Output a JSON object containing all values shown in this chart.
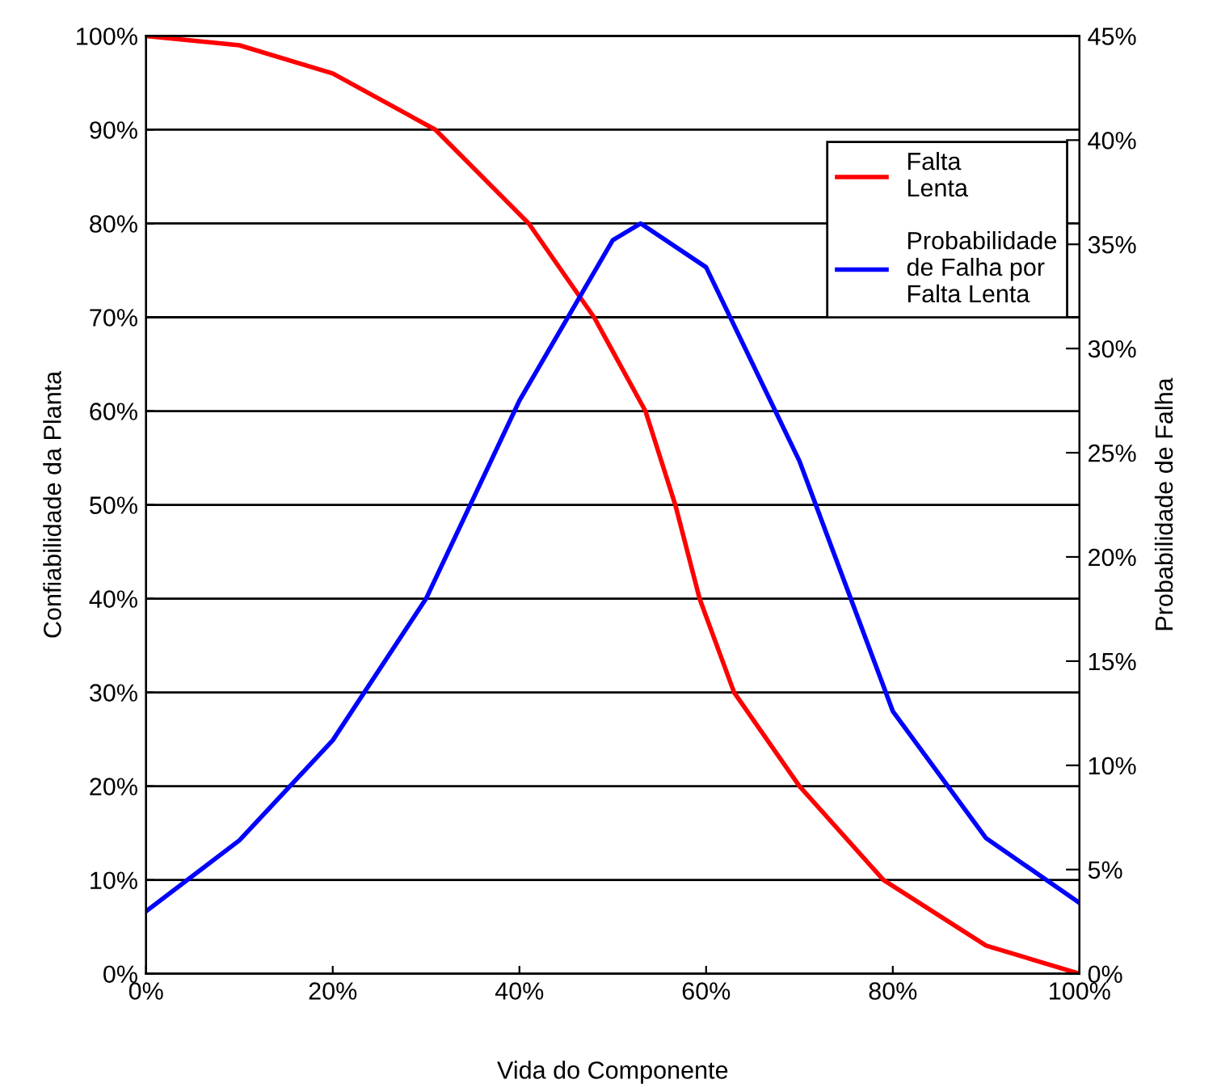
{
  "chart_data": {
    "type": "line",
    "xlabel": "Vida do Componente",
    "ylabel": "Confiabilidade da Planta",
    "y2label": "Probabilidade de Falha",
    "xlim": [
      0,
      100
    ],
    "ylim": [
      0,
      100
    ],
    "y2lim": [
      0,
      45
    ],
    "xticks": [
      {
        "value": 0,
        "label": "0%"
      },
      {
        "value": 20,
        "label": "20%"
      },
      {
        "value": 40,
        "label": "40%"
      },
      {
        "value": 60,
        "label": "60%"
      },
      {
        "value": 80,
        "label": "80%"
      },
      {
        "value": 100,
        "label": "100%"
      }
    ],
    "yticks": [
      {
        "value": 0,
        "label": "0%"
      },
      {
        "value": 10,
        "label": "10%"
      },
      {
        "value": 20,
        "label": "20%"
      },
      {
        "value": 30,
        "label": "30%"
      },
      {
        "value": 40,
        "label": "40%"
      },
      {
        "value": 50,
        "label": "50%"
      },
      {
        "value": 60,
        "label": "60%"
      },
      {
        "value": 70,
        "label": "70%"
      },
      {
        "value": 80,
        "label": "80%"
      },
      {
        "value": 90,
        "label": "90%"
      },
      {
        "value": 100,
        "label": "100%"
      }
    ],
    "y2ticks": [
      {
        "value": 0,
        "label": "0%"
      },
      {
        "value": 5,
        "label": "5%"
      },
      {
        "value": 10,
        "label": "10%"
      },
      {
        "value": 15,
        "label": "15%"
      },
      {
        "value": 20,
        "label": "20%"
      },
      {
        "value": 25,
        "label": "25%"
      },
      {
        "value": 30,
        "label": "30%"
      },
      {
        "value": 35,
        "label": "35%"
      },
      {
        "value": 40,
        "label": "40%"
      },
      {
        "value": 45,
        "label": "45%"
      }
    ],
    "grid": "y",
    "legend": "top right",
    "marker": "none",
    "line_style": "solid",
    "series": [
      {
        "name": "Falta\nLenta",
        "color": "#ff0000",
        "x": [
          0,
          10,
          20,
          31,
          41,
          48,
          53.5,
          56.7,
          59.3,
          63,
          70,
          79,
          90,
          100
        ],
        "values": [
          100,
          99,
          96,
          90,
          80,
          70,
          60,
          50,
          40,
          30,
          20,
          10,
          3,
          0
        ]
      },
      {
        "name": "Probabilidade\nde Falha por\nFalta Lenta",
        "color": "#0000ff",
        "axis": "y2",
        "x": [
          0,
          10,
          20,
          30,
          40,
          50,
          53,
          60,
          70,
          80,
          90,
          100
        ],
        "values": [
          3,
          6.4,
          11.2,
          18,
          27.5,
          35.2,
          36,
          33.9,
          24.6,
          12.6,
          6.5,
          3.4
        ]
      }
    ]
  }
}
